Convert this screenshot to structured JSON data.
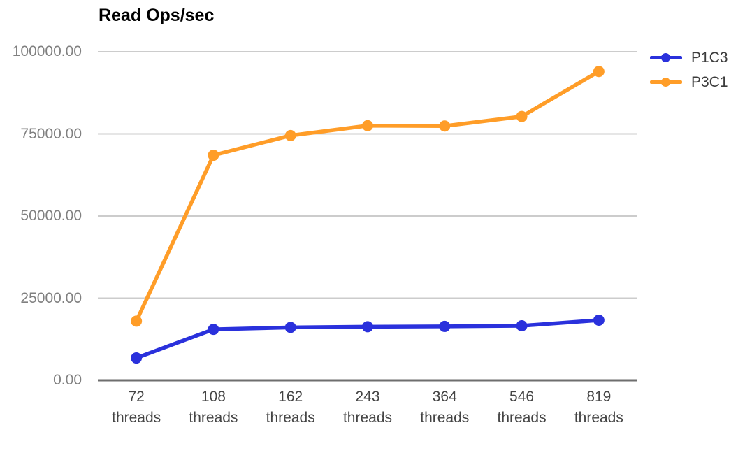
{
  "chart_data": {
    "type": "line",
    "title": "Read Ops/sec",
    "categories": [
      "72 threads",
      "108 threads",
      "162 threads",
      "243 threads",
      "364 threads",
      "546 threads",
      "819 threads"
    ],
    "x_ticks": [
      {
        "value": "72",
        "unit": "threads"
      },
      {
        "value": "108",
        "unit": "threads"
      },
      {
        "value": "162",
        "unit": "threads"
      },
      {
        "value": "243",
        "unit": "threads"
      },
      {
        "value": "364",
        "unit": "threads"
      },
      {
        "value": "546",
        "unit": "threads"
      },
      {
        "value": "819",
        "unit": "threads"
      }
    ],
    "series": [
      {
        "name": "P1C3",
        "color": "#2a31dc",
        "values": [
          6800,
          15500,
          16100,
          16300,
          16400,
          16600,
          18300
        ]
      },
      {
        "name": "P3C1",
        "color": "#ff9d28",
        "values": [
          18000,
          68500,
          74500,
          77500,
          77400,
          80300,
          94000
        ]
      }
    ],
    "y_ticks": [
      {
        "value": 0,
        "label": "0.00"
      },
      {
        "value": 25000,
        "label": "25000.00"
      },
      {
        "value": 50000,
        "label": "50000.00"
      },
      {
        "value": 75000,
        "label": "75000.00"
      },
      {
        "value": 100000,
        "label": "100000.00"
      }
    ],
    "ylim": [
      0,
      100000
    ],
    "grid": true,
    "legend_position": "right",
    "colors": {
      "gridline": "#cccccc",
      "axis": "#6e6e6e",
      "y_label": "#808080",
      "x_label": "#444444",
      "legend_label": "#3c3c3c",
      "title": "#000000",
      "background": "#ffffff"
    }
  }
}
